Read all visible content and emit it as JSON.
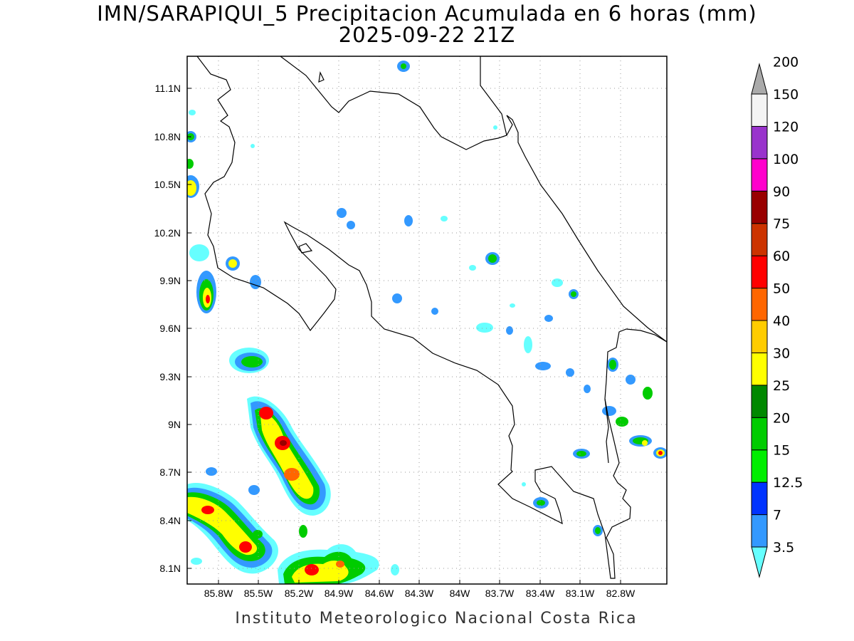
{
  "title": "IMN/SARAPIQUI_5 Precipitacion Acumulada en 6 horas (mm)",
  "subtitle": "2025-09-22 21Z",
  "footer": "Instituto Meteorologico Nacional Costa Rica",
  "map": {
    "lon_range": [
      -86.03,
      -82.57
    ],
    "lat_range": [
      8.01,
      11.31
    ],
    "x_ticks": [
      "85.8W",
      "85.5W",
      "85.2W",
      "84.9W",
      "84.6W",
      "84.3W",
      "84W",
      "83.7W",
      "83.4W",
      "83.1W",
      "82.8W"
    ],
    "y_ticks": [
      "8.1N",
      "8.4N",
      "8.7N",
      "9N",
      "9.3N",
      "9.6N",
      "9.9N",
      "10.2N",
      "10.5N",
      "10.8N",
      "11.1N"
    ]
  },
  "colorbar": {
    "labels": [
      "3.5",
      "7",
      "12.5",
      "15",
      "20",
      "25",
      "30",
      "40",
      "50",
      "60",
      "75",
      "90",
      "100",
      "120",
      "150",
      "200"
    ],
    "colors": [
      "#66ffff",
      "#3399ff",
      "#0033ff",
      "#00ee00",
      "#00cc00",
      "#008800",
      "#ffff00",
      "#ffcc00",
      "#ff6600",
      "#ff0000",
      "#cc3300",
      "#990000",
      "#ff00cc",
      "#9933cc",
      "#f4f4f4",
      "#aaaaaa"
    ]
  }
}
